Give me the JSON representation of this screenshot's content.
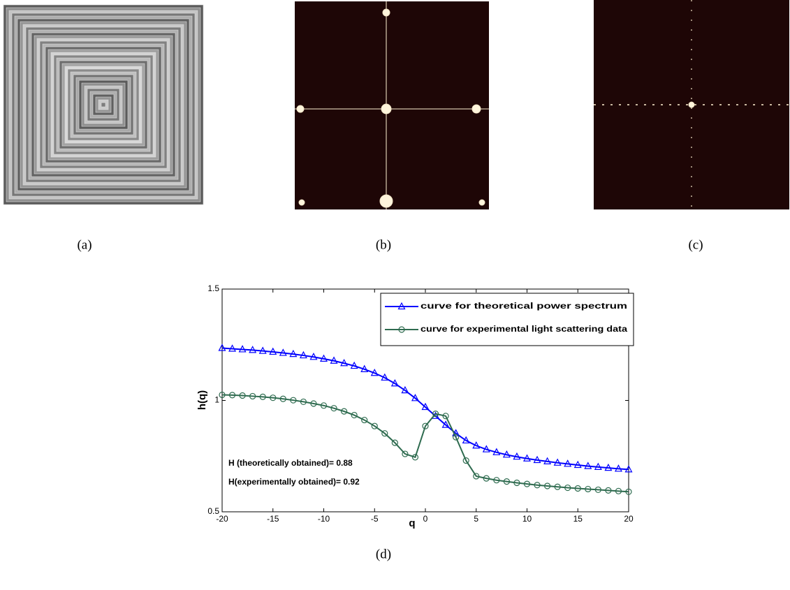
{
  "panel_labels": [
    "(a)",
    "(b)",
    "(c)",
    "(d)"
  ],
  "chart_data": {
    "type": "line",
    "xlabel": "q",
    "ylabel": "h(q)",
    "x": [
      -20,
      -19,
      -18,
      -17,
      -16,
      -15,
      -14,
      -13,
      -12,
      -11,
      -10,
      -9,
      -8,
      -7,
      -6,
      -5,
      -4,
      -3,
      -2,
      -1,
      0,
      1,
      2,
      3,
      4,
      5,
      6,
      7,
      8,
      9,
      10,
      11,
      12,
      13,
      14,
      15,
      16,
      17,
      18,
      19,
      20
    ],
    "series": [
      {
        "name": "curve for theoretical power spectrum",
        "color": "#0000ff",
        "marker": "triangle",
        "values": [
          1.235,
          1.232,
          1.229,
          1.226,
          1.222,
          1.218,
          1.213,
          1.208,
          1.202,
          1.195,
          1.187,
          1.178,
          1.167,
          1.155,
          1.14,
          1.123,
          1.102,
          1.076,
          1.045,
          1.01,
          0.97,
          0.93,
          0.89,
          0.852,
          0.82,
          0.797,
          0.78,
          0.767,
          0.756,
          0.747,
          0.739,
          0.732,
          0.726,
          0.72,
          0.715,
          0.71,
          0.705,
          0.701,
          0.697,
          0.693,
          0.69
        ]
      },
      {
        "name": "curve for experimental light scattering data",
        "color": "#2e6b4f",
        "marker": "circle",
        "values": [
          1.025,
          1.024,
          1.022,
          1.019,
          1.016,
          1.012,
          1.007,
          1.001,
          0.994,
          0.986,
          0.977,
          0.965,
          0.951,
          0.934,
          0.912,
          0.885,
          0.852,
          0.81,
          0.76,
          0.745,
          0.885,
          0.94,
          0.93,
          0.835,
          0.73,
          0.66,
          0.65,
          0.642,
          0.636,
          0.63,
          0.625,
          0.62,
          0.616,
          0.612,
          0.608,
          0.605,
          0.602,
          0.599,
          0.596,
          0.593,
          0.59
        ]
      }
    ],
    "xlim": [
      -20,
      20
    ],
    "xticks": [
      -20,
      -15,
      -10,
      -5,
      0,
      5,
      10,
      15,
      20
    ],
    "ylim": [
      0.5,
      1.5
    ],
    "yticks": [
      0.5,
      1,
      1.5
    ],
    "legend": "top-right",
    "annotations": [
      "H (theoretically obtained)= 0.88",
      "H(experimentally obtained)= 0.92"
    ]
  }
}
